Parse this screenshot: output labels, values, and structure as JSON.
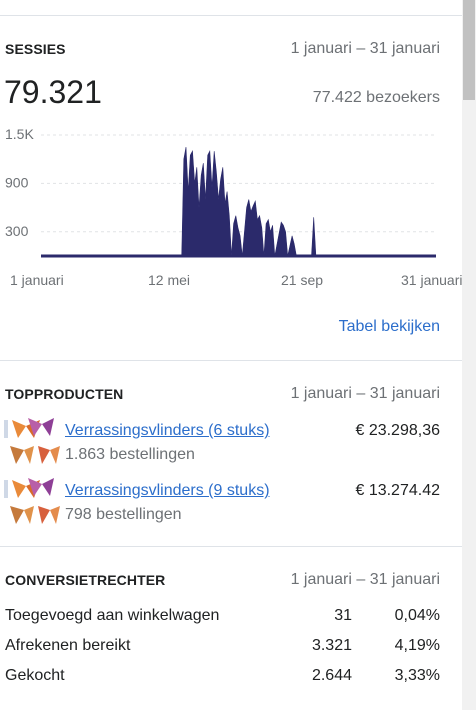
{
  "sessions": {
    "title": "SESSIES",
    "date_range": "1 januari – 31 januari",
    "total": "79.321",
    "visitors": "77.422 bezoekers",
    "view_table": "Tabel bekijken"
  },
  "chart_data": {
    "type": "area",
    "title": "",
    "xlabel": "",
    "ylabel": "",
    "ylim": [
      0,
      1500
    ],
    "y_ticks": [
      "1.5K",
      "900",
      "300"
    ],
    "x_ticks": [
      "1 januari",
      "12 mei",
      "21 sep",
      "31 januari"
    ],
    "grid": true,
    "color": "#2b2a6b",
    "series": [
      {
        "name": "",
        "points": [
          [
            0,
            0
          ],
          [
            130,
            0
          ],
          [
            132,
            1200
          ],
          [
            134,
            1350
          ],
          [
            136,
            800
          ],
          [
            138,
            1250
          ],
          [
            140,
            1300
          ],
          [
            142,
            900
          ],
          [
            144,
            1100
          ],
          [
            146,
            600
          ],
          [
            148,
            1000
          ],
          [
            150,
            1150
          ],
          [
            152,
            700
          ],
          [
            154,
            1250
          ],
          [
            156,
            1300
          ],
          [
            158,
            850
          ],
          [
            160,
            1300
          ],
          [
            162,
            1050
          ],
          [
            164,
            700
          ],
          [
            166,
            950
          ],
          [
            168,
            1100
          ],
          [
            170,
            650
          ],
          [
            172,
            800
          ],
          [
            174,
            500
          ],
          [
            176,
            0
          ],
          [
            178,
            400
          ],
          [
            180,
            500
          ],
          [
            182,
            350
          ],
          [
            184,
            250
          ],
          [
            186,
            0
          ],
          [
            190,
            600
          ],
          [
            192,
            700
          ],
          [
            194,
            550
          ],
          [
            196,
            620
          ],
          [
            198,
            680
          ],
          [
            200,
            450
          ],
          [
            202,
            500
          ],
          [
            204,
            350
          ],
          [
            206,
            0
          ],
          [
            208,
            400
          ],
          [
            210,
            450
          ],
          [
            212,
            300
          ],
          [
            214,
            380
          ],
          [
            216,
            0
          ],
          [
            222,
            420
          ],
          [
            224,
            380
          ],
          [
            226,
            300
          ],
          [
            228,
            0
          ],
          [
            232,
            250
          ],
          [
            234,
            150
          ],
          [
            236,
            0
          ],
          [
            250,
            0
          ],
          [
            252,
            480
          ],
          [
            254,
            0
          ],
          [
            365,
            0
          ]
        ]
      }
    ]
  },
  "top_products": {
    "title": "TOPPRODUCTEN",
    "date_range": "1 januari – 31 januari",
    "items": [
      {
        "name": "Verrassingsvlinders (6 stuks)",
        "orders": "1.863 bestellingen",
        "revenue": "€ 23.298,36"
      },
      {
        "name": "Verrassingsvlinders (9 stuks)",
        "orders": "798 bestellingen",
        "revenue": "€ 13.274.42"
      }
    ]
  },
  "conversion": {
    "title": "CONVERSIETRECHTER",
    "date_range": "1 januari – 31 januari",
    "rows": [
      {
        "label": "Toegevoegd aan winkelwagen",
        "count": "31",
        "pct": "0,04%"
      },
      {
        "label": "Afrekenen bereikt",
        "count": "3.321",
        "pct": "4,19%"
      },
      {
        "label": "Gekocht",
        "count": "2.644",
        "pct": "3,33%"
      }
    ]
  }
}
